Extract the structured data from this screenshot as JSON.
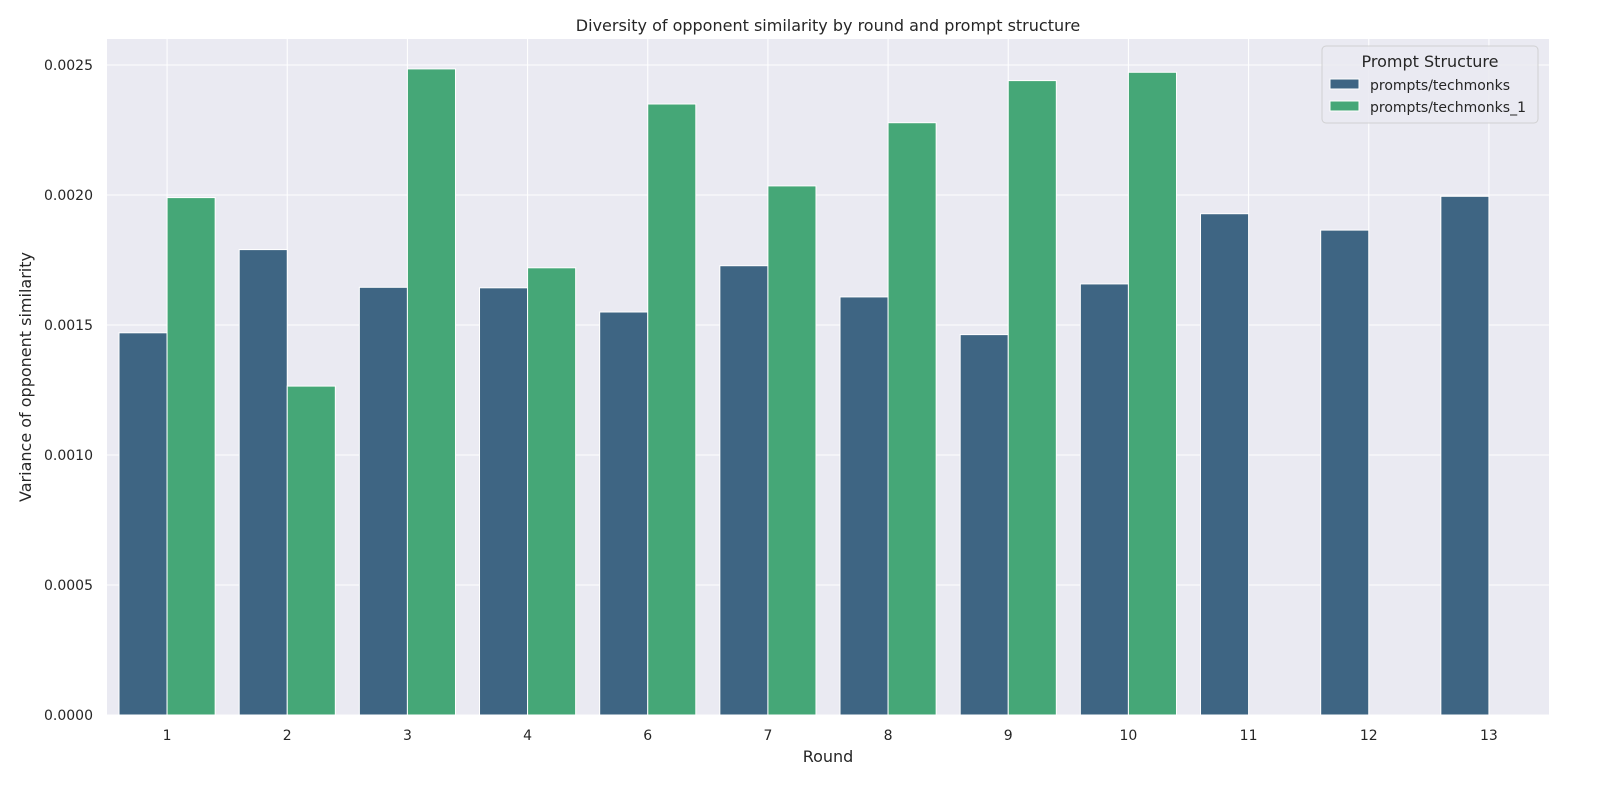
{
  "chart_data": {
    "type": "bar",
    "title": "Diversity of opponent similarity by round and prompt structure",
    "xlabel": "Round",
    "ylabel": "Variance of opponent similarity",
    "categories": [
      "1",
      "2",
      "3",
      "4",
      "6",
      "7",
      "8",
      "9",
      "10",
      "11",
      "12",
      "13"
    ],
    "series": [
      {
        "name": "prompts/techmonks",
        "color": "#3e6583",
        "values": [
          0.00147,
          0.00179,
          0.001645,
          0.001643,
          0.00155,
          0.001728,
          0.001608,
          0.001463,
          0.001658,
          0.001928,
          0.001865,
          0.001995
        ]
      },
      {
        "name": "prompts/techmonks_1",
        "color": "#45a777",
        "values": [
          0.00199,
          0.001265,
          0.002485,
          0.00172,
          0.00235,
          0.002035,
          0.002278,
          0.00244,
          0.002472,
          null,
          null,
          null
        ]
      }
    ],
    "ylim": [
      0,
      0.0026
    ],
    "yticks": [
      0,
      0.0005,
      0.001,
      0.0015,
      0.002,
      0.0025
    ],
    "ytick_labels": [
      "0.0000",
      "0.0005",
      "0.0010",
      "0.0015",
      "0.0020",
      "0.0025"
    ],
    "grid": true,
    "legend": {
      "title": "Prompt Structure",
      "position": "top-right"
    },
    "plot_background": "#eaeaf2"
  }
}
